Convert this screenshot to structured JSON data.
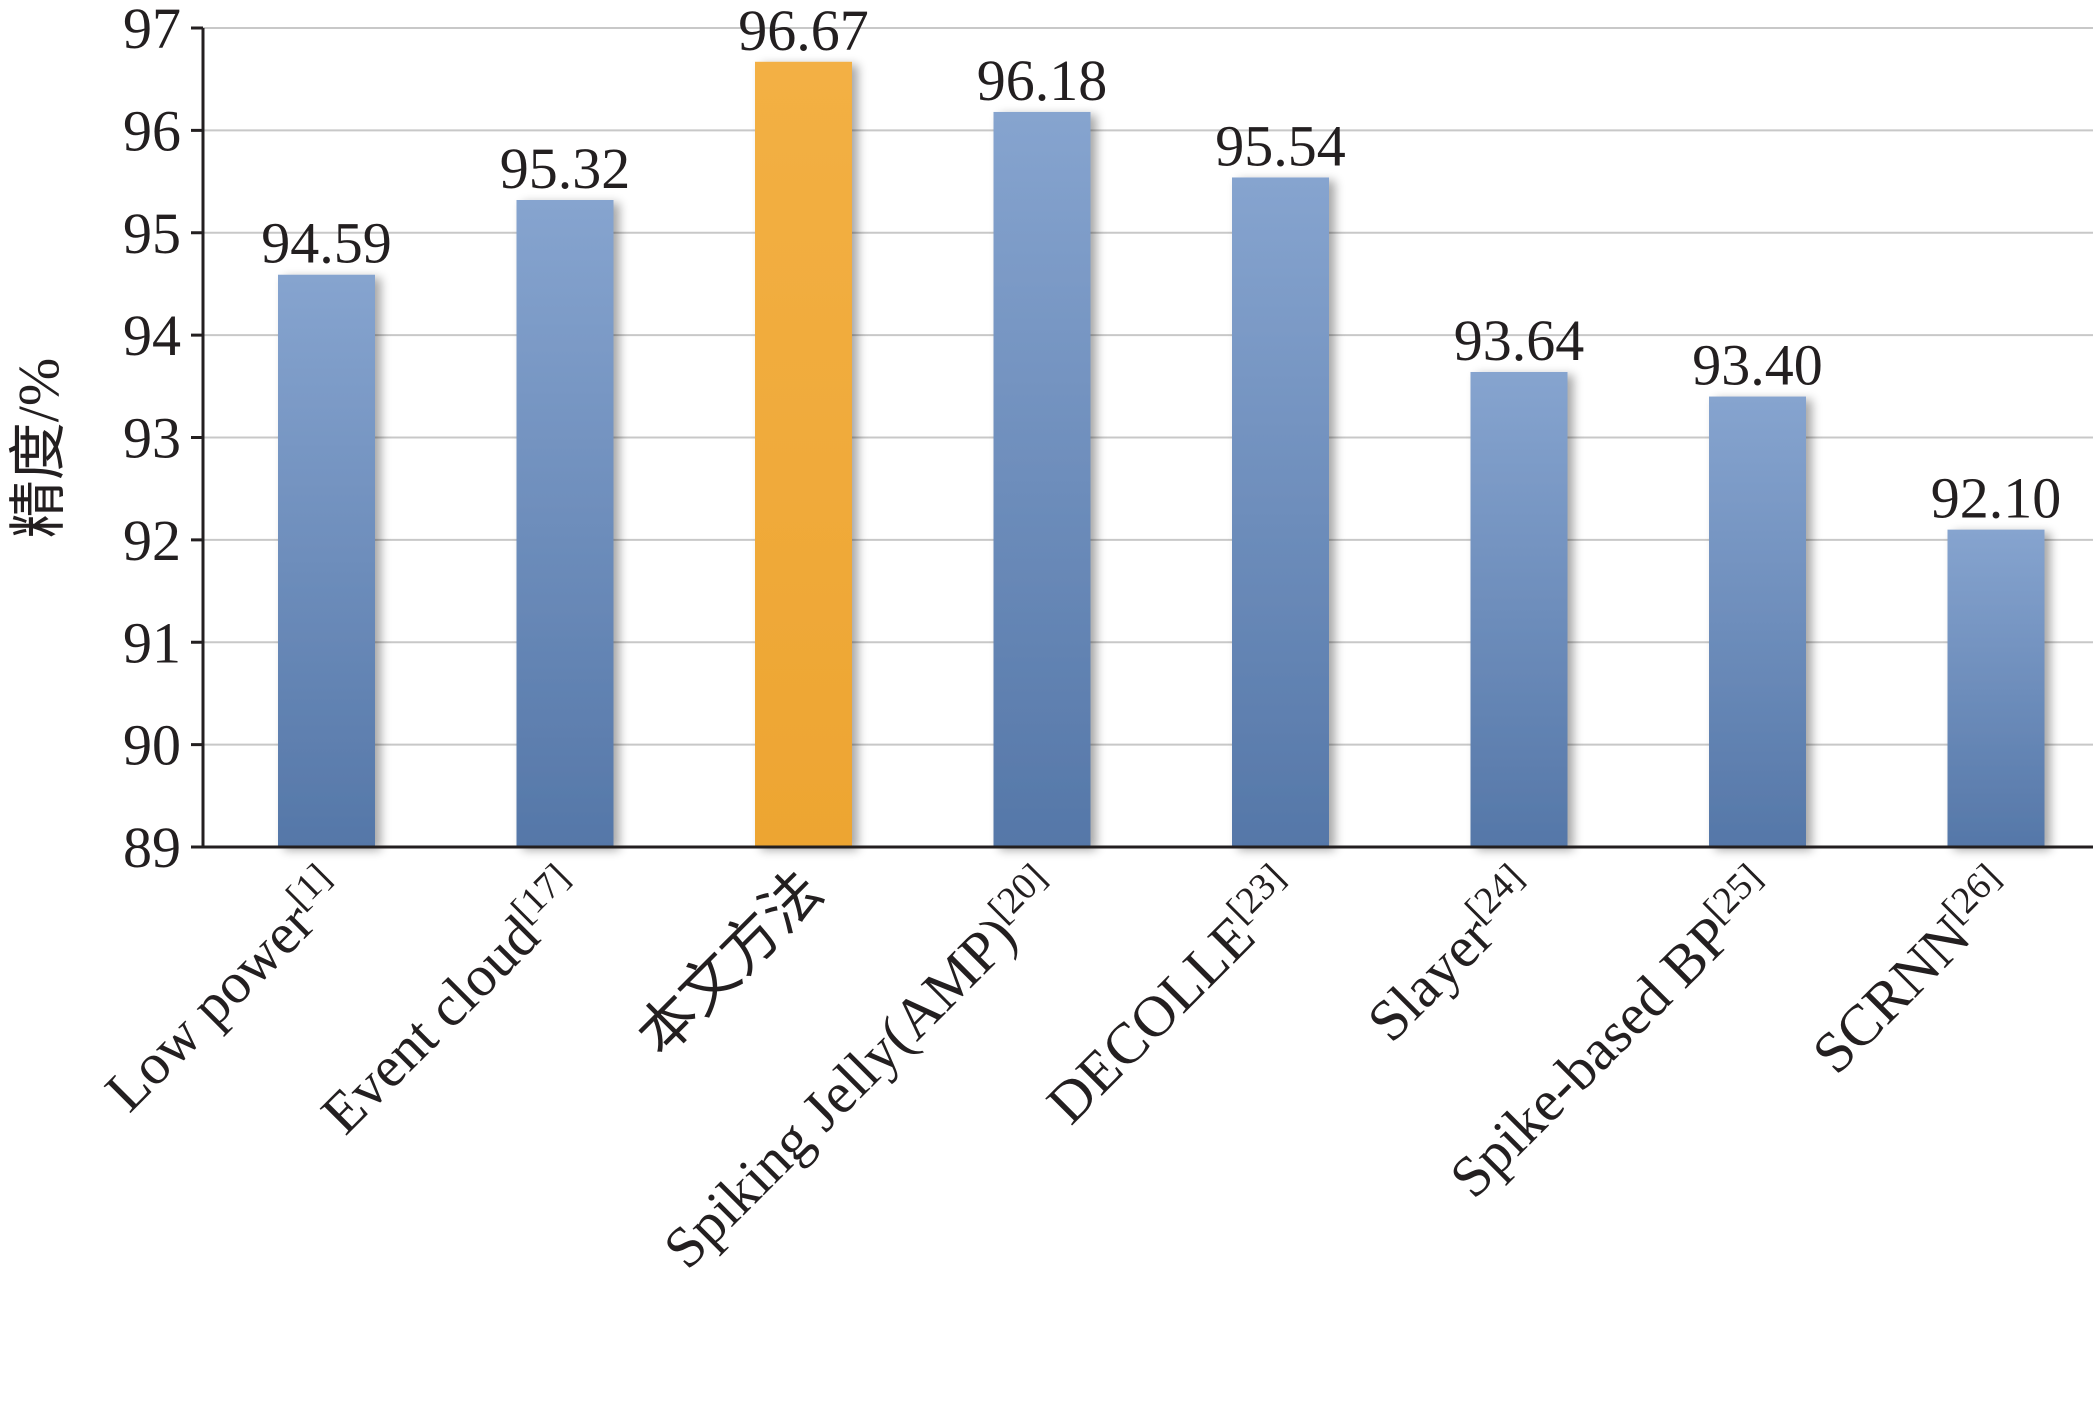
{
  "chart_data": {
    "type": "bar",
    "title": "",
    "xlabel": "",
    "ylabel": "精度/%",
    "ylim": [
      89,
      97
    ],
    "yticks": [
      89,
      90,
      91,
      92,
      93,
      94,
      95,
      96,
      97
    ],
    "grid": true,
    "legend": "none",
    "categories": [
      {
        "name": "Low  power",
        "ref": "[1]"
      },
      {
        "name": "Event cloud",
        "ref": "[17]"
      },
      {
        "name": "本文方法",
        "ref": ""
      },
      {
        "name": "Spiking Jelly(AMP)",
        "ref": "[20]"
      },
      {
        "name": "DECOLLE",
        "ref": "[23]"
      },
      {
        "name": "Slayer",
        "ref": "[24]"
      },
      {
        "name": "Spike-based BP",
        "ref": "[25]"
      },
      {
        "name": "SCRNN",
        "ref": "[26]"
      }
    ],
    "values": [
      94.59,
      95.32,
      96.67,
      96.18,
      95.54,
      93.64,
      93.4,
      92.1
    ],
    "value_labels": [
      "94.59",
      "95.32",
      "96.67",
      "96.18",
      "95.54",
      "93.64",
      "93.40",
      "92.10"
    ],
    "highlight_index": 2
  },
  "colors": {
    "bar": "#7093c3",
    "bar_dark": "#5577a8",
    "bar_light": "#86a4cf",
    "highlight": "#f0aa3a",
    "gridline": "#c8c8c8",
    "axis": "#231f20",
    "text": "#231f20"
  }
}
